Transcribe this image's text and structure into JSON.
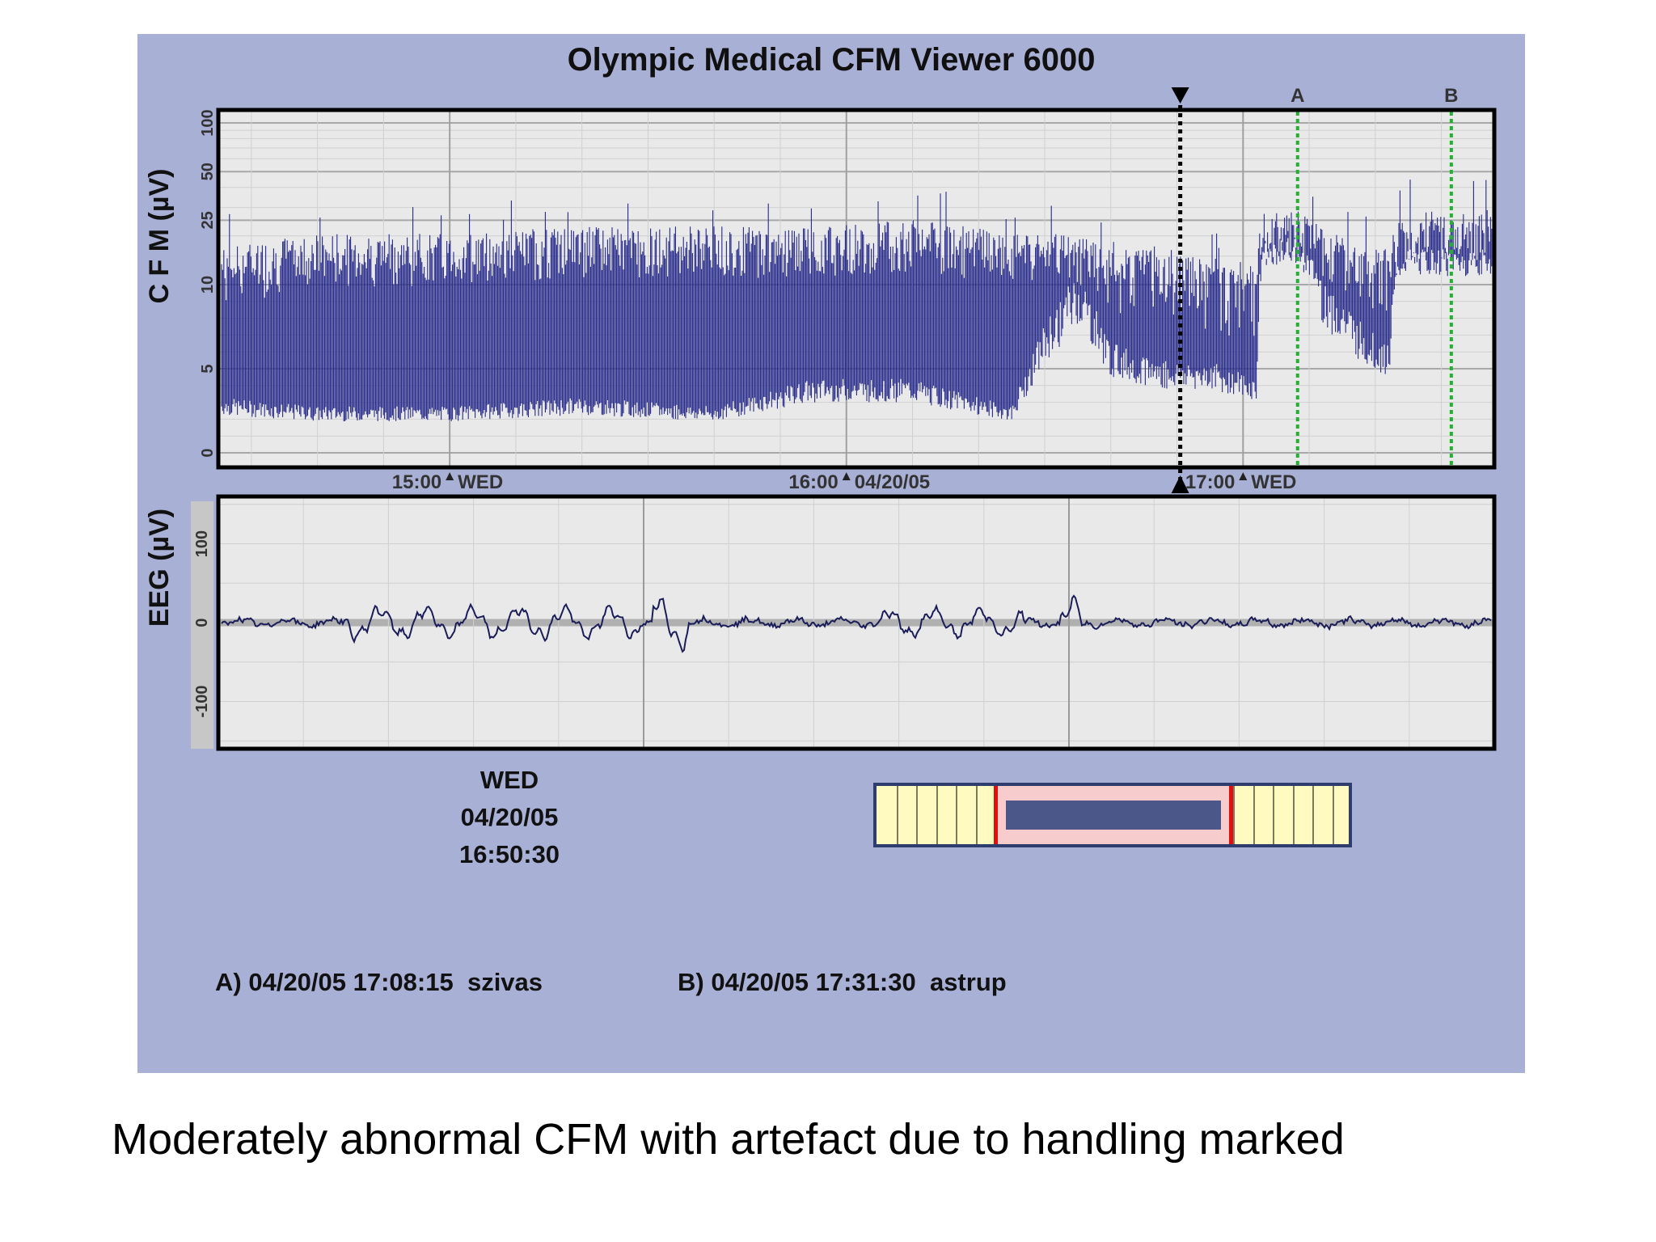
{
  "viewer": {
    "title": "Olympic Medical CFM Viewer 6000",
    "date_block": {
      "day": "WED",
      "date": "04/20/05",
      "time": "16:50:30"
    },
    "annotations": [
      {
        "label": "A)",
        "timestamp": "04/20/05 17:08:15",
        "user": "szivas"
      },
      {
        "label": "B)",
        "timestamp": "04/20/05 17:31:30",
        "user": "astrup"
      }
    ]
  },
  "caption": "Moderately abnormal CFM with artefact due to handling marked",
  "colors": {
    "background": "#a9b0d6",
    "plot_bg": "#e9e9e9",
    "trace": "#25288a",
    "eeg_trace": "#1a1d5a",
    "cursor": "#000000",
    "marker": "#23b033",
    "nav_fill": "#fffbc0",
    "nav_window": "#f6cccc",
    "nav_border": "#e01010"
  },
  "chart_data": [
    {
      "type": "area",
      "name": "cfm",
      "ylabel": "C F M (µV)",
      "scale": "semi-log",
      "yticks": [
        0,
        5,
        10,
        25,
        50,
        100
      ],
      "xlim": [
        "14:25",
        "17:38"
      ],
      "xticks": [
        {
          "time": "15:00",
          "label": "15:00",
          "sub": "WED"
        },
        {
          "time": "16:00",
          "label": "16:00",
          "sub": "04/20/05"
        },
        {
          "time": "17:00",
          "label": "17:00",
          "sub": "WED"
        }
      ],
      "cursor": "16:50:30",
      "markers": [
        {
          "label": "A",
          "time": "17:08:15"
        },
        {
          "label": "B",
          "time": "17:31:30"
        }
      ],
      "grid": true,
      "band": [
        {
          "t": "14:25",
          "lower": 3,
          "upper": 15
        },
        {
          "t": "14:40",
          "lower": 2.5,
          "upper": 18
        },
        {
          "t": "15:00",
          "lower": 2.5,
          "upper": 18
        },
        {
          "t": "15:20",
          "lower": 3,
          "upper": 20
        },
        {
          "t": "15:40",
          "lower": 2.5,
          "upper": 20
        },
        {
          "t": "15:55",
          "lower": 4,
          "upper": 20
        },
        {
          "t": "16:10",
          "lower": 4,
          "upper": 22
        },
        {
          "t": "16:25",
          "lower": 2.5,
          "upper": 18
        },
        {
          "t": "16:30",
          "lower": 7,
          "upper": 18
        },
        {
          "t": "16:35",
          "lower": 10,
          "upper": 18
        },
        {
          "t": "16:40",
          "lower": 6,
          "upper": 15
        },
        {
          "t": "16:48",
          "lower": 5,
          "upper": 15
        },
        {
          "t": "16:55",
          "lower": 5,
          "upper": 12
        },
        {
          "t": "17:02",
          "lower": 4,
          "upper": 12
        },
        {
          "t": "17:03",
          "lower": 17,
          "upper": 25
        },
        {
          "t": "17:08",
          "lower": 18,
          "upper": 25
        },
        {
          "t": "17:12",
          "lower": 10,
          "upper": 20
        },
        {
          "t": "17:18",
          "lower": 7,
          "upper": 15
        },
        {
          "t": "17:22",
          "lower": 6,
          "upper": 14
        },
        {
          "t": "17:24",
          "lower": 15,
          "upper": 25
        },
        {
          "t": "17:30",
          "lower": 15,
          "upper": 25
        },
        {
          "t": "17:38",
          "lower": 15,
          "upper": 25
        }
      ]
    },
    {
      "type": "line",
      "name": "eeg",
      "ylabel": "EEG (µV)",
      "yticks": [
        -100,
        0,
        100
      ],
      "ylim": [
        -160,
        160
      ],
      "grid": true
    }
  ]
}
